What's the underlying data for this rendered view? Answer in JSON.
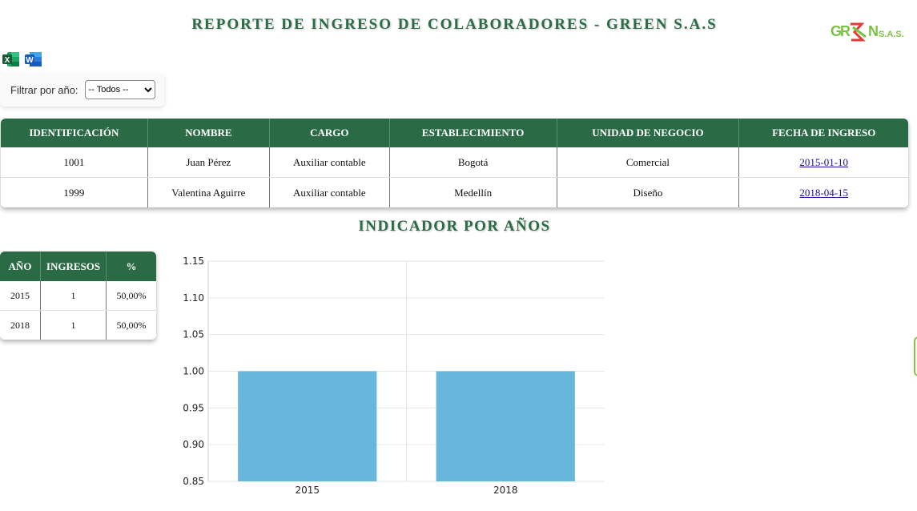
{
  "header": {
    "title": "REPORTE DE INGRESO DE COLABORADORES - GREEN S.A.S"
  },
  "logo": {
    "text_main": "GREEN",
    "text_suffix": "S.A.S."
  },
  "export": [
    {
      "name": "excel-icon",
      "letter": "X",
      "color": "#1d6f42"
    },
    {
      "name": "word-icon",
      "letter": "W",
      "color": "#2b579a"
    }
  ],
  "filter": {
    "label": "Filtrar por año:",
    "selected": "-- Todos --"
  },
  "employees": {
    "columns": [
      "IDENTIFICACIÓN",
      "NOMBRE",
      "CARGO",
      "ESTABLECIMIENTO",
      "UNIDAD DE NEGOCIO",
      "FECHA DE INGRESO"
    ],
    "rows": [
      [
        "1001",
        "Juan Pérez",
        "Auxiliar contable",
        "Bogotá",
        "Comercial",
        "2015-01-10"
      ],
      [
        "1999",
        "Valentina Aguirre",
        "Auxiliar contable",
        "Medellín",
        "Diseño",
        "2018-04-15"
      ]
    ]
  },
  "indicator": {
    "title": "INDICADOR POR AÑOS",
    "columns": [
      "AÑO",
      "INGRESOS",
      "%"
    ],
    "rows": [
      [
        "2015",
        "1",
        "50,00%"
      ],
      [
        "2018",
        "1",
        "50,00%"
      ]
    ]
  },
  "colors": {
    "brand_green": "#2a6b46",
    "bar": "#67b6dc",
    "link": "#1a0dab"
  },
  "chart_data": {
    "type": "bar",
    "categories": [
      "2015",
      "2018"
    ],
    "values": [
      1,
      1
    ],
    "title": "",
    "xlabel": "",
    "ylabel": "",
    "ylim": [
      0.85,
      1.15
    ],
    "yticks": [
      "0.85",
      "0.90",
      "0.95",
      "1.00",
      "1.05",
      "1.10",
      "1.15"
    ],
    "grid": true,
    "legend": "none"
  }
}
